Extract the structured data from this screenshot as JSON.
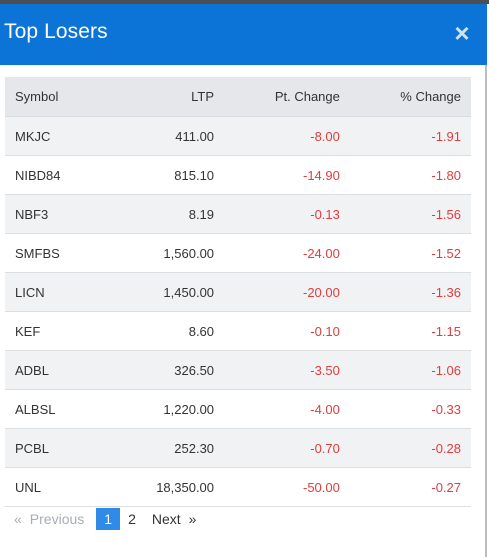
{
  "modal": {
    "title": "Top Losers",
    "close_glyph": "×"
  },
  "table": {
    "headers": {
      "symbol": "Symbol",
      "ltp": "LTP",
      "pt_change": "Pt. Change",
      "pct_change": "% Change"
    },
    "rows": [
      {
        "symbol": "MKJC",
        "ltp": "411.00",
        "pt_change": "-8.00",
        "pct_change": "-1.91"
      },
      {
        "symbol": "NIBD84",
        "ltp": "815.10",
        "pt_change": "-14.90",
        "pct_change": "-1.80"
      },
      {
        "symbol": "NBF3",
        "ltp": "8.19",
        "pt_change": "-0.13",
        "pct_change": "-1.56"
      },
      {
        "symbol": "SMFBS",
        "ltp": "1,560.00",
        "pt_change": "-24.00",
        "pct_change": "-1.52"
      },
      {
        "symbol": "LICN",
        "ltp": "1,450.00",
        "pt_change": "-20.00",
        "pct_change": "-1.36"
      },
      {
        "symbol": "KEF",
        "ltp": "8.60",
        "pt_change": "-0.10",
        "pct_change": "-1.15"
      },
      {
        "symbol": "ADBL",
        "ltp": "326.50",
        "pt_change": "-3.50",
        "pct_change": "-1.06"
      },
      {
        "symbol": "ALBSL",
        "ltp": "1,220.00",
        "pt_change": "-4.00",
        "pct_change": "-0.33"
      },
      {
        "symbol": "PCBL",
        "ltp": "252.30",
        "pt_change": "-0.70",
        "pct_change": "-0.28"
      },
      {
        "symbol": "UNL",
        "ltp": "18,350.00",
        "pt_change": "-50.00",
        "pct_change": "-0.27"
      }
    ]
  },
  "pagination": {
    "first_glyph": "«",
    "previous_label": "Previous",
    "pages": [
      "1",
      "2"
    ],
    "active_page": "1",
    "next_label": "Next",
    "last_glyph": "»"
  },
  "colors": {
    "header_bg": "#0b74d6",
    "negative": "#e23c3c",
    "active_page_bg": "#2f8be6"
  }
}
